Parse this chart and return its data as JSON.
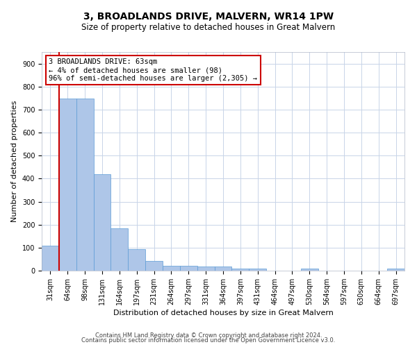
{
  "title": "3, BROADLANDS DRIVE, MALVERN, WR14 1PW",
  "subtitle": "Size of property relative to detached houses in Great Malvern",
  "xlabel": "Distribution of detached houses by size in Great Malvern",
  "ylabel": "Number of detached properties",
  "categories": [
    "31sqm",
    "64sqm",
    "98sqm",
    "131sqm",
    "164sqm",
    "197sqm",
    "231sqm",
    "264sqm",
    "297sqm",
    "331sqm",
    "364sqm",
    "397sqm",
    "431sqm",
    "464sqm",
    "497sqm",
    "530sqm",
    "564sqm",
    "597sqm",
    "630sqm",
    "664sqm",
    "697sqm"
  ],
  "values": [
    110,
    748,
    748,
    420,
    185,
    95,
    43,
    20,
    20,
    17,
    17,
    10,
    10,
    0,
    0,
    8,
    0,
    0,
    0,
    0,
    8
  ],
  "bar_color": "#aec6e8",
  "bar_edge_color": "#5b9bd5",
  "annotation_text": "3 BROADLANDS DRIVE: 63sqm\n← 4% of detached houses are smaller (98)\n96% of semi-detached houses are larger (2,305) →",
  "annotation_box_color": "#ffffff",
  "annotation_box_edge_color": "#cc0000",
  "vline_color": "#cc0000",
  "vline_x": 0.5,
  "ylim": [
    0,
    950
  ],
  "yticks": [
    0,
    100,
    200,
    300,
    400,
    500,
    600,
    700,
    800,
    900
  ],
  "footer_line1": "Contains HM Land Registry data © Crown copyright and database right 2024.",
  "footer_line2": "Contains public sector information licensed under the Open Government Licence v3.0.",
  "background_color": "#ffffff",
  "grid_color": "#c8d4e8",
  "title_fontsize": 10,
  "subtitle_fontsize": 8.5,
  "axis_label_fontsize": 8,
  "tick_fontsize": 7,
  "footer_fontsize": 6,
  "annotation_fontsize": 7.5
}
